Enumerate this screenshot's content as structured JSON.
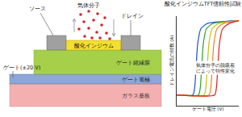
{
  "diagram": {
    "labels": {
      "gas": "気体分子",
      "source": "ソース",
      "drain": "ドレイン",
      "gate": "ゲート(±20 V)",
      "channel": "酸化インジウム",
      "insulator": "ゲート絶縁膜",
      "electrode": "ゲート電極",
      "substrate": "ガラス基板"
    }
  },
  "chart_data": {
    "type": "line",
    "title": "酸化インジウムTFT信頼性試験",
    "x_label": "ゲート電圧 (V)",
    "y_label": "ドレイン電流の対数 (A)",
    "annotation": [
      "気体分子の脱吸着",
      "によって特性変化"
    ],
    "xlim": [
      0,
      10
    ],
    "ylim": [
      0,
      10
    ],
    "tick_labels": false,
    "grid": false,
    "series": [
      {
        "color": "#1f4fd0",
        "x": [
          0,
          2.6,
          2.9,
          3.1,
          3.4,
          3.9,
          5.0,
          10
        ],
        "values": [
          1.2,
          1.2,
          2,
          4,
          7,
          8.6,
          9.2,
          9.5
        ]
      },
      {
        "color": "#2ca02c",
        "x": [
          0,
          3.5,
          3.8,
          4.0,
          4.3,
          4.8,
          5.9,
          10
        ],
        "values": [
          1.2,
          1.2,
          2,
          4,
          7,
          8.6,
          9.2,
          9.5
        ]
      },
      {
        "color": "#c8c000",
        "x": [
          0,
          4.4,
          4.7,
          4.9,
          5.2,
          5.7,
          6.8,
          10
        ],
        "values": [
          1.2,
          1.2,
          2,
          4,
          7,
          8.6,
          9.2,
          9.5
        ]
      },
      {
        "color": "#f08020",
        "x": [
          0,
          5.2,
          5.5,
          5.7,
          6.0,
          6.5,
          7.6,
          10
        ],
        "values": [
          1.2,
          1.2,
          2,
          4,
          7,
          8.6,
          9.2,
          9.5
        ]
      },
      {
        "color": "#e02020",
        "x": [
          0,
          6.1,
          6.4,
          6.6,
          6.9,
          7.4,
          8.5,
          10
        ],
        "values": [
          1.2,
          1.2,
          2,
          4,
          7,
          8.6,
          9.2,
          9.5
        ]
      }
    ]
  }
}
